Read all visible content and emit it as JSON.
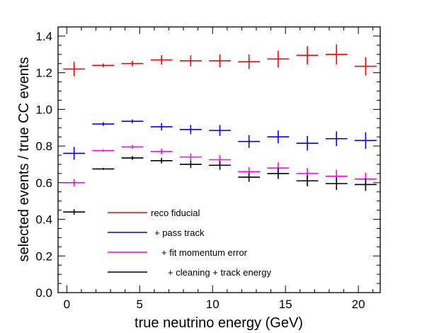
{
  "chart_data": {
    "type": "scatter",
    "xlabel": "true neutrino energy (GeV)",
    "ylabel": "selected events / true CC events",
    "xlim": [
      -0.6,
      21.5
    ],
    "ylim": [
      0,
      1.45
    ],
    "x_ticks": [
      0,
      5,
      10,
      15,
      20
    ],
    "y_ticks": [
      0.0,
      0.2,
      0.4,
      0.6,
      0.8,
      1.0,
      1.2,
      1.4
    ],
    "y_tick_labels": [
      "0.0",
      "0.2",
      "0.4",
      "0.6",
      "0.8",
      "1.0",
      "1.2",
      "1.4"
    ],
    "x_bin_halfwidth": 0.75,
    "legend_position": "bottom-left",
    "series": [
      {
        "name": "reco fiducial",
        "color": "#ff0000",
        "x": [
          0.5,
          2.5,
          4.5,
          6.5,
          8.5,
          10.5,
          12.5,
          14.5,
          16.5,
          18.5,
          20.5
        ],
        "y": [
          1.22,
          1.24,
          1.25,
          1.27,
          1.265,
          1.265,
          1.26,
          1.275,
          1.295,
          1.3,
          1.235
        ],
        "yerr": [
          0.04,
          0.01,
          0.015,
          0.025,
          0.03,
          0.035,
          0.04,
          0.045,
          0.05,
          0.055,
          0.05
        ]
      },
      {
        "name": "+ pass track",
        "color": "#0000ff",
        "x": [
          0.5,
          2.5,
          4.5,
          6.5,
          8.5,
          10.5,
          12.5,
          14.5,
          16.5,
          18.5,
          20.5
        ],
        "y": [
          0.76,
          0.92,
          0.935,
          0.905,
          0.89,
          0.885,
          0.825,
          0.85,
          0.815,
          0.84,
          0.83
        ],
        "yerr": [
          0.035,
          0.01,
          0.01,
          0.02,
          0.025,
          0.03,
          0.035,
          0.035,
          0.04,
          0.04,
          0.045
        ]
      },
      {
        "name": "+ fit momentum error",
        "color": "#ff00ff",
        "x": [
          0.5,
          2.5,
          4.5,
          6.5,
          8.5,
          10.5,
          12.5,
          14.5,
          16.5,
          18.5,
          20.5
        ],
        "y": [
          0.6,
          0.775,
          0.795,
          0.77,
          0.74,
          0.725,
          0.66,
          0.68,
          0.65,
          0.635,
          0.62
        ],
        "yerr": [
          0.02,
          0.005,
          0.01,
          0.015,
          0.02,
          0.025,
          0.025,
          0.03,
          0.03,
          0.035,
          0.035
        ]
      },
      {
        "name": "+ cleaning + track energy",
        "color": "#000000",
        "x": [
          0.5,
          2.5,
          4.5,
          6.5,
          8.5,
          10.5,
          12.5,
          14.5,
          16.5,
          18.5,
          20.5
        ],
        "y": [
          0.44,
          0.675,
          0.735,
          0.72,
          0.7,
          0.695,
          0.63,
          0.65,
          0.61,
          0.595,
          0.59
        ],
        "yerr": [
          0.015,
          0.005,
          0.01,
          0.015,
          0.02,
          0.025,
          0.025,
          0.03,
          0.03,
          0.035,
          0.035
        ]
      }
    ]
  }
}
